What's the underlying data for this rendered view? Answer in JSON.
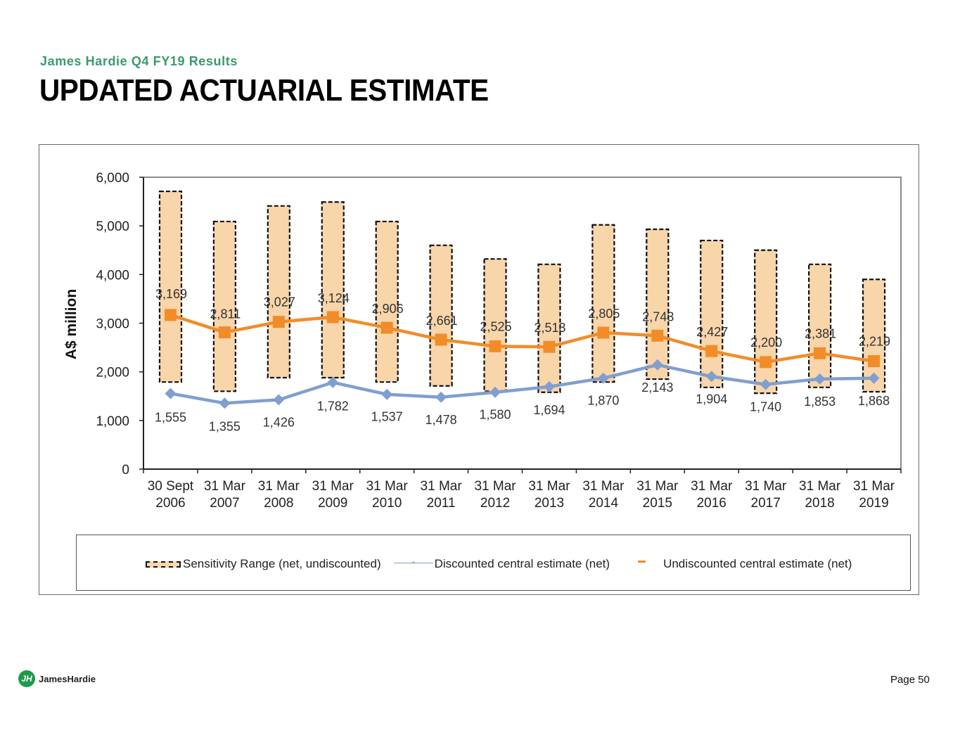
{
  "header": {
    "subtitle": "James Hardie Q4 FY19 Results",
    "title": "UPDATED ACTUARIAL ESTIMATE"
  },
  "footer": {
    "logo_text": "JamesHardie",
    "logo_mark": "JH",
    "page": "Page 50"
  },
  "colors": {
    "accent_green": "#3a9a6b",
    "range_fill": "#f9d5aa",
    "discounted": "#7f9fcf",
    "undiscounted": "#f28c28"
  },
  "chart_data": {
    "type": "line",
    "title": "",
    "xlabel": "",
    "ylabel": "A$ million",
    "ylim": [
      0,
      6000
    ],
    "yticks": [
      0,
      1000,
      2000,
      3000,
      4000,
      5000,
      6000
    ],
    "ytick_labels": [
      "0",
      "1,000",
      "2,000",
      "3,000",
      "4,000",
      "5,000",
      "6,000"
    ],
    "grid": false,
    "legend_position": "bottom",
    "categories": [
      [
        "30 Sept",
        "2006"
      ],
      [
        "31 Mar",
        "2007"
      ],
      [
        "31 Mar",
        "2008"
      ],
      [
        "31 Mar",
        "2009"
      ],
      [
        "31 Mar",
        "2010"
      ],
      [
        "31 Mar",
        "2011"
      ],
      [
        "31 Mar",
        "2012"
      ],
      [
        "31 Mar",
        "2013"
      ],
      [
        "31 Mar",
        "2014"
      ],
      [
        "31 Mar",
        "2015"
      ],
      [
        "31 Mar",
        "2016"
      ],
      [
        "31 Mar",
        "2017"
      ],
      [
        "31 Mar",
        "2018"
      ],
      [
        "31 Mar",
        "2019"
      ]
    ],
    "series": [
      {
        "name": "Sensitivity Range (net, undiscounted)",
        "kind": "range",
        "low": [
          1790,
          1600,
          1880,
          1880,
          1790,
          1710,
          1600,
          1580,
          1790,
          1850,
          1680,
          1560,
          1680,
          1590
        ],
        "high": [
          5710,
          5090,
          5410,
          5490,
          5090,
          4600,
          4320,
          4210,
          5020,
          4930,
          4700,
          4500,
          4210,
          3900
        ]
      },
      {
        "name": "Discounted central estimate (net)",
        "kind": "line",
        "marker": "diamond",
        "values": [
          1555,
          1355,
          1426,
          1782,
          1537,
          1478,
          1580,
          1694,
          1870,
          2143,
          1904,
          1740,
          1853,
          1868
        ],
        "labels": [
          "1,555",
          "1,355",
          "1,426",
          "1,782",
          "1,537",
          "1,478",
          "1,580",
          "1,694",
          "1,870",
          "2,143",
          "1,904",
          "1,740",
          "1,853",
          "1,868"
        ]
      },
      {
        "name": "Undiscounted central estimate (net)",
        "kind": "line",
        "marker": "square",
        "values": [
          3169,
          2811,
          3027,
          3124,
          2906,
          2661,
          2525,
          2513,
          2805,
          2743,
          2427,
          2200,
          2381,
          2219
        ],
        "labels": [
          "3,169",
          "2,811",
          "3,027",
          "3,124",
          "2,906",
          "2,661",
          "2,525",
          "2,513",
          "2,805",
          "2,743",
          "2,427",
          "2,200",
          "2,381",
          "2,219"
        ]
      }
    ]
  }
}
